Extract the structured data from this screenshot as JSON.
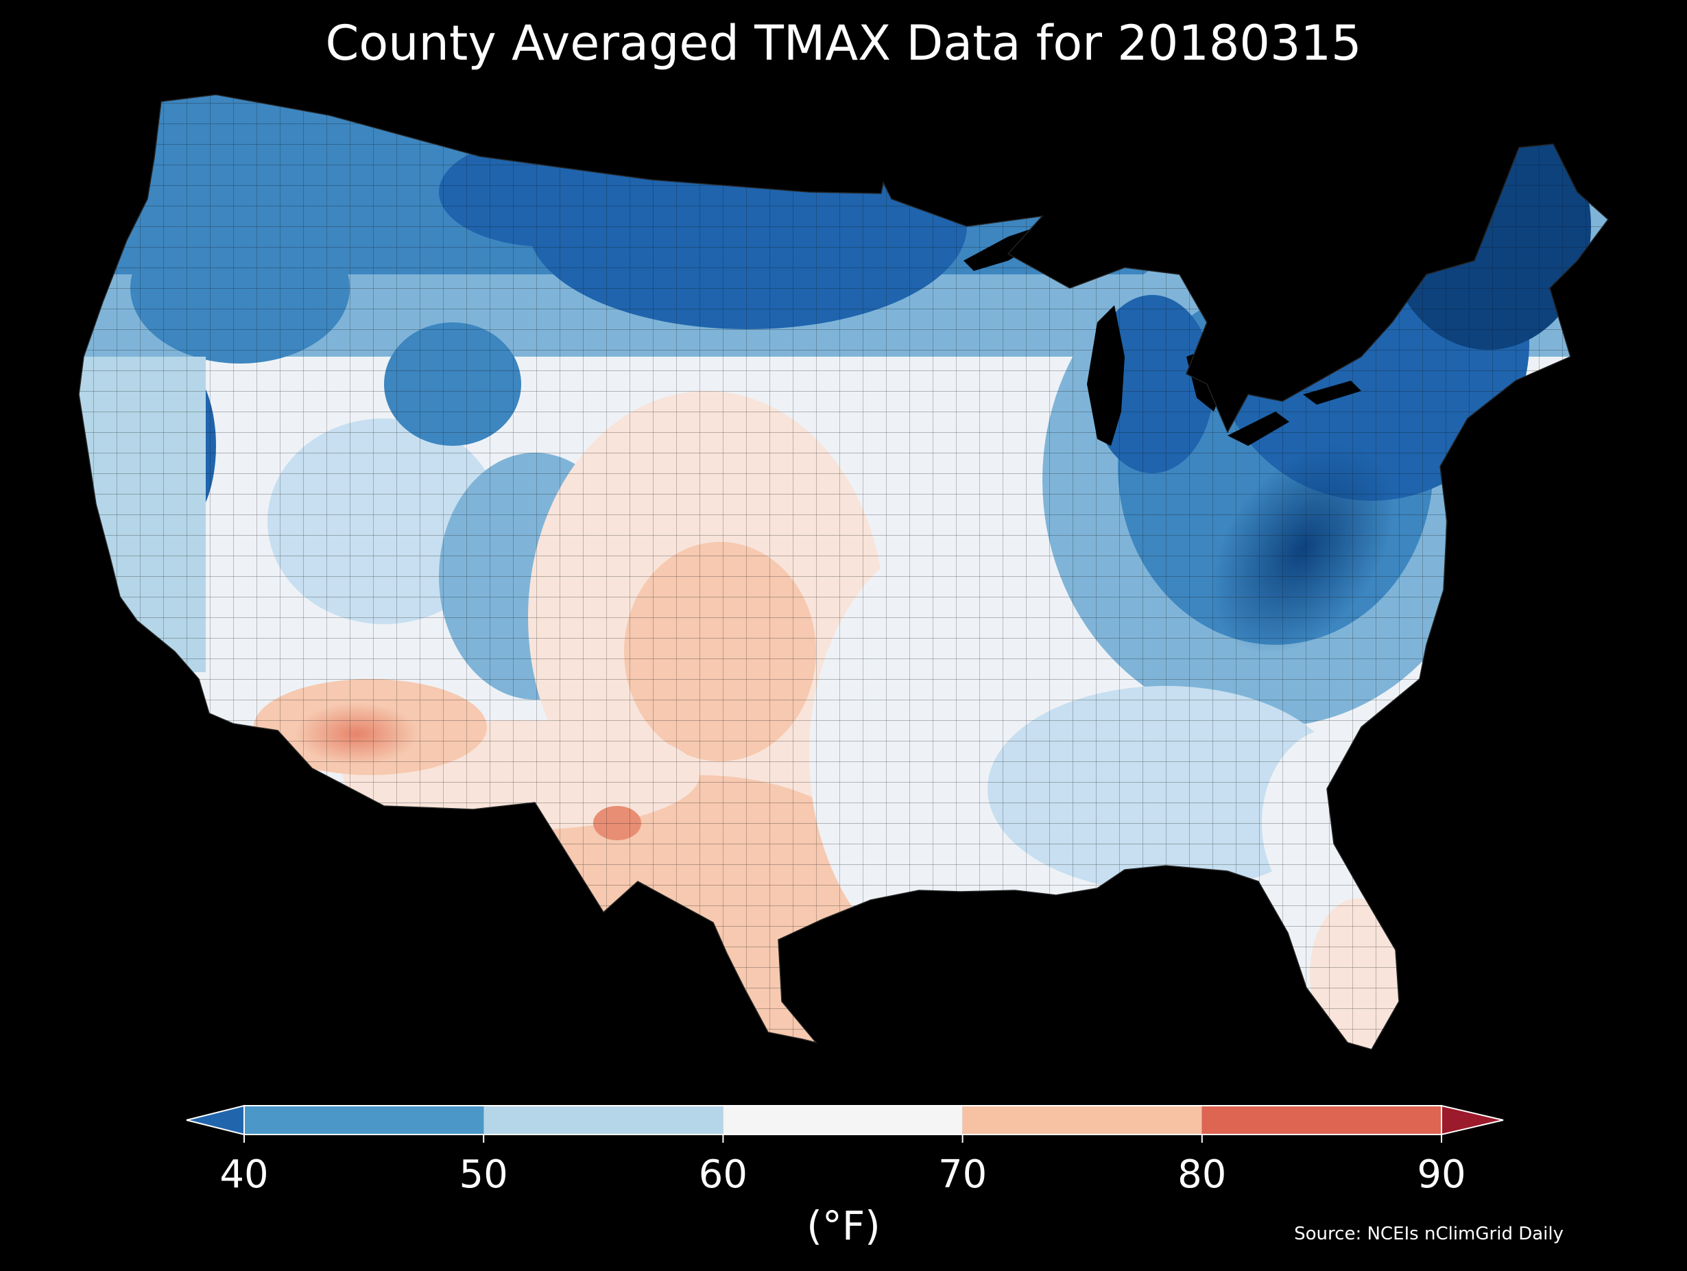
{
  "title": "County Averaged TMAX Data for 20180315",
  "source": "Source: NCEIs nClimGrid Daily",
  "colorbar": {
    "unit": "(°F)",
    "ticks": [
      "40",
      "50",
      "60",
      "70",
      "80",
      "90"
    ],
    "under_color": "#2166ac",
    "over_color": "#9b1a2b",
    "bins": [
      {
        "from": 40,
        "to": 50,
        "color": "#4a97c8"
      },
      {
        "from": 50,
        "to": 60,
        "color": "#b4d6e8"
      },
      {
        "from": 60,
        "to": 70,
        "color": "#f5f5f5"
      },
      {
        "from": 70,
        "to": 80,
        "color": "#f7c1a4"
      },
      {
        "from": 80,
        "to": 90,
        "color": "#dd6552"
      }
    ]
  },
  "map": {
    "subject": "Contiguous United States county choropleth",
    "background_color": "#000000",
    "palette": [
      "#0b3f78",
      "#1f64ad",
      "#3d86c0",
      "#7fb4d8",
      "#c7dff0",
      "#eef2f6",
      "#f8e4da",
      "#f6c9b0",
      "#e88e74"
    ]
  }
}
